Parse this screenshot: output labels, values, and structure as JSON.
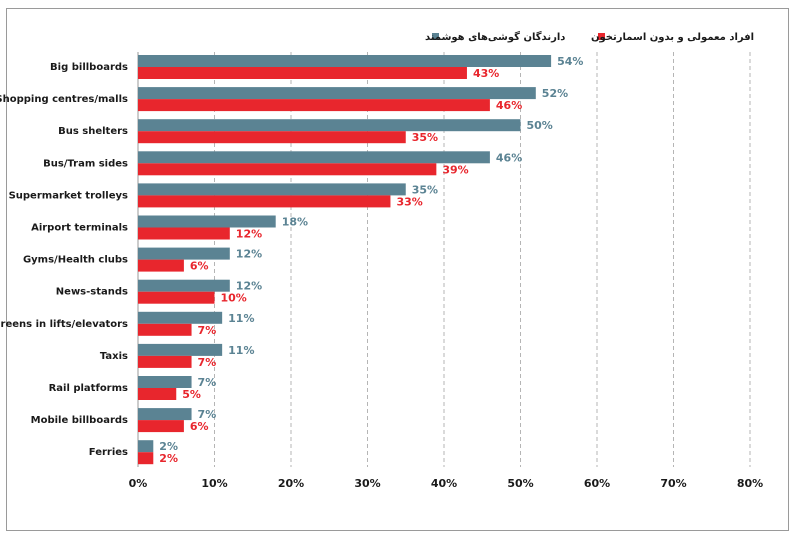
{
  "chart_data": {
    "type": "bar",
    "orientation": "horizontal",
    "title": "",
    "xlabel": "",
    "ylabel": "",
    "xlim": [
      0,
      80
    ],
    "x_ticks": [
      "0%",
      "10%",
      "20%",
      "30%",
      "40%",
      "50%",
      "60%",
      "70%",
      "80%"
    ],
    "grid": "vertical dashed",
    "legend_placement": "top",
    "unit": "%",
    "categories": [
      "Big billboards",
      "Shopping centres/malls",
      "Bus shelters",
      "Bus/Tram sides",
      "Supermarket trolleys",
      "Airport terminals",
      "Gyms/Health clubs",
      "News-stands",
      "Screens in lifts/elevators",
      "Taxis",
      "Rail platforms",
      "Mobile billboards",
      "Ferries"
    ],
    "series": [
      {
        "name": "دارندگان گوشی‌های هوشمند",
        "color": "#5b8393",
        "values": [
          54,
          52,
          50,
          46,
          35,
          18,
          12,
          12,
          11,
          11,
          7,
          7,
          2
        ],
        "labels": [
          "54%",
          "52%",
          "50%",
          "46%",
          "35%",
          "18%",
          "12%",
          "12%",
          "11%",
          "11%",
          "7%",
          "7%",
          "2%"
        ]
      },
      {
        "name": "افراد معمولی و بدون اسمارتخون",
        "color": "#e8262d",
        "values": [
          43,
          46,
          35,
          39,
          33,
          12,
          6,
          10,
          7,
          7,
          5,
          6,
          2
        ],
        "labels": [
          "43%",
          "46%",
          "35%",
          "39%",
          "33%",
          "12%",
          "6%",
          "10%",
          "7%",
          "7%",
          "5%",
          "6%",
          "2%"
        ]
      }
    ]
  }
}
